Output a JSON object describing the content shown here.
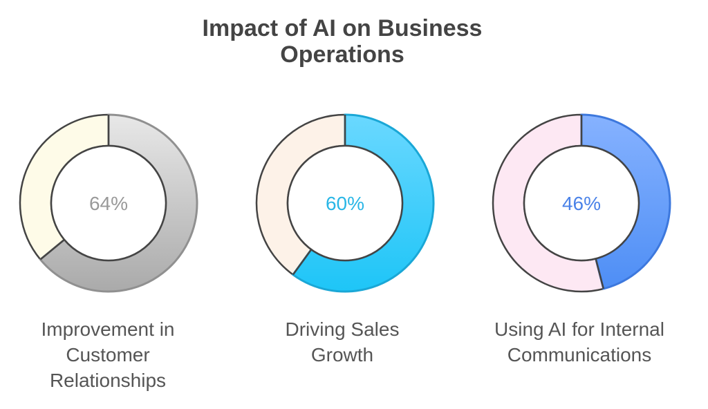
{
  "title_line1": "Impact of AI on Business",
  "title_line2": "Operations",
  "chart_data": [
    {
      "type": "pie",
      "value": 64,
      "label": "64%",
      "caption": [
        "Improvement in",
        "Customer",
        "Relationships"
      ],
      "colors": {
        "main_top": "#e8e8e8",
        "main_bottom": "#aaaaaa",
        "main_stroke": "#909090",
        "rest": "#fefbe8",
        "label": "#999999"
      }
    },
    {
      "type": "pie",
      "value": 60,
      "label": "60%",
      "caption": [
        "Driving Sales",
        "Growth"
      ],
      "colors": {
        "main_top": "#6ad8ff",
        "main_bottom": "#1ec5f7",
        "main_stroke": "#1aa7d6",
        "rest": "#fdf2e8",
        "label": "#29b6e6"
      }
    },
    {
      "type": "pie",
      "value": 46,
      "label": "46%",
      "caption": [
        "Using AI for Internal",
        "Communications"
      ],
      "colors": {
        "main_top": "#86b2ff",
        "main_bottom": "#4e8ef5",
        "main_stroke": "#3d78dd",
        "rest": "#fde8f3",
        "label": "#4a82e8"
      }
    }
  ]
}
